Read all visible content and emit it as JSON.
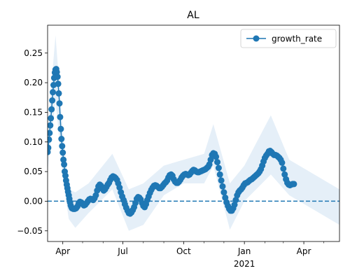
{
  "chart_data": {
    "type": "line",
    "title": "AL",
    "xlabel": "",
    "ylabel": "",
    "x_range": [
      "2020-03-09",
      "2021-05-25"
    ],
    "ylim": [
      -0.068,
      0.297
    ],
    "x_ticks": [
      {
        "date": "2020-04-01",
        "label": "Apr",
        "sublabel": ""
      },
      {
        "date": "2020-07-01",
        "label": "Jul",
        "sublabel": ""
      },
      {
        "date": "2020-10-01",
        "label": "Oct",
        "sublabel": ""
      },
      {
        "date": "2021-01-01",
        "label": "Jan",
        "sublabel": "2021"
      },
      {
        "date": "2021-04-01",
        "label": "Apr",
        "sublabel": ""
      }
    ],
    "x_minor_ticks": [
      "2020-05-01",
      "2020-06-01",
      "2020-08-01",
      "2020-09-01",
      "2020-11-01",
      "2020-12-01",
      "2021-02-01",
      "2021-03-01",
      "2021-05-01"
    ],
    "y_ticks": [
      -0.05,
      0.0,
      0.05,
      0.1,
      0.15,
      0.2,
      0.25
    ],
    "y_tick_labels": [
      "−0.05",
      "0.00",
      "0.05",
      "0.10",
      "0.15",
      "0.20",
      "0.25"
    ],
    "reference_line": {
      "y": 0.0,
      "style": "dashed"
    },
    "legend": {
      "position": "top-right",
      "entries": [
        "growth_rate"
      ]
    },
    "series": [
      {
        "name": "growth_rate",
        "color": "#1f77b4",
        "marker": "circle",
        "band_color": "#c6dbef",
        "points": [
          [
            "2020-03-09",
            0.083
          ],
          [
            "2020-03-10",
            0.09
          ],
          [
            "2020-03-11",
            0.104
          ],
          [
            "2020-03-12",
            0.115
          ],
          [
            "2020-03-13",
            0.128
          ],
          [
            "2020-03-14",
            0.14
          ],
          [
            "2020-03-15",
            0.155
          ],
          [
            "2020-03-16",
            0.17
          ],
          [
            "2020-03-17",
            0.184
          ],
          [
            "2020-03-18",
            0.196
          ],
          [
            "2020-03-19",
            0.208
          ],
          [
            "2020-03-20",
            0.217
          ],
          [
            "2020-03-21",
            0.222
          ],
          [
            "2020-03-22",
            0.223
          ],
          [
            "2020-03-23",
            0.218
          ],
          [
            "2020-03-24",
            0.21
          ],
          [
            "2020-03-25",
            0.198
          ],
          [
            "2020-03-26",
            0.182
          ],
          [
            "2020-03-27",
            0.165
          ],
          [
            "2020-03-28",
            0.142
          ],
          [
            "2020-03-29",
            0.122
          ],
          [
            "2020-03-30",
            0.105
          ],
          [
            "2020-03-31",
            0.093
          ],
          [
            "2020-04-01",
            0.082
          ],
          [
            "2020-04-02",
            0.07
          ],
          [
            "2020-04-03",
            0.062
          ],
          [
            "2020-04-04",
            0.05
          ],
          [
            "2020-04-05",
            0.043
          ],
          [
            "2020-04-06",
            0.035
          ],
          [
            "2020-04-07",
            0.028
          ],
          [
            "2020-04-08",
            0.022
          ],
          [
            "2020-04-09",
            0.016
          ],
          [
            "2020-04-10",
            0.01
          ],
          [
            "2020-04-11",
            0.004
          ],
          [
            "2020-04-12",
            -0.002
          ],
          [
            "2020-04-13",
            -0.007
          ],
          [
            "2020-04-14",
            -0.01
          ],
          [
            "2020-04-15",
            -0.012
          ],
          [
            "2020-04-17",
            -0.013
          ],
          [
            "2020-04-19",
            -0.013
          ],
          [
            "2020-04-21",
            -0.012
          ],
          [
            "2020-04-23",
            -0.009
          ],
          [
            "2020-04-25",
            -0.004
          ],
          [
            "2020-04-27",
            -0.001
          ],
          [
            "2020-04-29",
            -0.002
          ],
          [
            "2020-05-01",
            -0.005
          ],
          [
            "2020-05-03",
            -0.007
          ],
          [
            "2020-05-05",
            -0.006
          ],
          [
            "2020-05-07",
            -0.003
          ],
          [
            "2020-05-09",
            0.0
          ],
          [
            "2020-05-11",
            0.003
          ],
          [
            "2020-05-13",
            0.004
          ],
          [
            "2020-05-15",
            0.003
          ],
          [
            "2020-05-17",
            0.002
          ],
          [
            "2020-05-19",
            0.005
          ],
          [
            "2020-05-21",
            0.01
          ],
          [
            "2020-05-23",
            0.018
          ],
          [
            "2020-05-25",
            0.025
          ],
          [
            "2020-05-27",
            0.028
          ],
          [
            "2020-05-29",
            0.026
          ],
          [
            "2020-05-31",
            0.021
          ],
          [
            "2020-06-02",
            0.018
          ],
          [
            "2020-06-04",
            0.02
          ],
          [
            "2020-06-06",
            0.024
          ],
          [
            "2020-06-08",
            0.028
          ],
          [
            "2020-06-10",
            0.031
          ],
          [
            "2020-06-12",
            0.036
          ],
          [
            "2020-06-14",
            0.04
          ],
          [
            "2020-06-16",
            0.042
          ],
          [
            "2020-06-18",
            0.041
          ],
          [
            "2020-06-20",
            0.039
          ],
          [
            "2020-06-22",
            0.036
          ],
          [
            "2020-06-24",
            0.03
          ],
          [
            "2020-06-26",
            0.023
          ],
          [
            "2020-06-28",
            0.015
          ],
          [
            "2020-06-30",
            0.008
          ],
          [
            "2020-07-02",
            0.002
          ],
          [
            "2020-07-04",
            -0.005
          ],
          [
            "2020-07-06",
            -0.011
          ],
          [
            "2020-07-08",
            -0.016
          ],
          [
            "2020-07-10",
            -0.02
          ],
          [
            "2020-07-12",
            -0.021
          ],
          [
            "2020-07-14",
            -0.019
          ],
          [
            "2020-07-16",
            -0.015
          ],
          [
            "2020-07-18",
            -0.01
          ],
          [
            "2020-07-20",
            -0.003
          ],
          [
            "2020-07-22",
            0.004
          ],
          [
            "2020-07-24",
            0.007
          ],
          [
            "2020-07-26",
            0.006
          ],
          [
            "2020-07-28",
            0.003
          ],
          [
            "2020-07-30",
            -0.003
          ],
          [
            "2020-08-01",
            -0.008
          ],
          [
            "2020-08-03",
            -0.01
          ],
          [
            "2020-08-05",
            -0.005
          ],
          [
            "2020-08-07",
            0.002
          ],
          [
            "2020-08-09",
            0.008
          ],
          [
            "2020-08-11",
            0.014
          ],
          [
            "2020-08-13",
            0.019
          ],
          [
            "2020-08-15",
            0.023
          ],
          [
            "2020-08-17",
            0.026
          ],
          [
            "2020-08-19",
            0.027
          ],
          [
            "2020-08-21",
            0.026
          ],
          [
            "2020-08-23",
            0.024
          ],
          [
            "2020-08-25",
            0.022
          ],
          [
            "2020-08-27",
            0.022
          ],
          [
            "2020-08-29",
            0.024
          ],
          [
            "2020-08-31",
            0.027
          ],
          [
            "2020-09-02",
            0.03
          ],
          [
            "2020-09-04",
            0.032
          ],
          [
            "2020-09-06",
            0.035
          ],
          [
            "2020-09-08",
            0.04
          ],
          [
            "2020-09-10",
            0.044
          ],
          [
            "2020-09-12",
            0.045
          ],
          [
            "2020-09-14",
            0.043
          ],
          [
            "2020-09-16",
            0.037
          ],
          [
            "2020-09-18",
            0.033
          ],
          [
            "2020-09-20",
            0.031
          ],
          [
            "2020-09-22",
            0.031
          ],
          [
            "2020-09-24",
            0.033
          ],
          [
            "2020-09-26",
            0.036
          ],
          [
            "2020-09-28",
            0.04
          ],
          [
            "2020-09-30",
            0.043
          ],
          [
            "2020-10-02",
            0.045
          ],
          [
            "2020-10-04",
            0.046
          ],
          [
            "2020-10-06",
            0.045
          ],
          [
            "2020-10-08",
            0.044
          ],
          [
            "2020-10-10",
            0.045
          ],
          [
            "2020-10-12",
            0.048
          ],
          [
            "2020-10-14",
            0.051
          ],
          [
            "2020-10-16",
            0.053
          ],
          [
            "2020-10-18",
            0.052
          ],
          [
            "2020-10-20",
            0.05
          ],
          [
            "2020-10-22",
            0.049
          ],
          [
            "2020-10-24",
            0.049
          ],
          [
            "2020-10-26",
            0.05
          ],
          [
            "2020-10-28",
            0.051
          ],
          [
            "2020-10-30",
            0.052
          ],
          [
            "2020-11-01",
            0.053
          ],
          [
            "2020-11-03",
            0.054
          ],
          [
            "2020-11-05",
            0.056
          ],
          [
            "2020-11-07",
            0.058
          ],
          [
            "2020-11-09",
            0.062
          ],
          [
            "2020-11-11",
            0.07
          ],
          [
            "2020-11-13",
            0.078
          ],
          [
            "2020-11-15",
            0.081
          ],
          [
            "2020-11-17",
            0.08
          ],
          [
            "2020-11-19",
            0.075
          ],
          [
            "2020-11-21",
            0.066
          ],
          [
            "2020-11-23",
            0.056
          ],
          [
            "2020-11-25",
            0.045
          ],
          [
            "2020-11-27",
            0.035
          ],
          [
            "2020-11-29",
            0.025
          ],
          [
            "2020-12-01",
            0.015
          ],
          [
            "2020-12-03",
            0.006
          ],
          [
            "2020-12-05",
            -0.002
          ],
          [
            "2020-12-07",
            -0.008
          ],
          [
            "2020-12-09",
            -0.013
          ],
          [
            "2020-12-11",
            -0.016
          ],
          [
            "2020-12-13",
            -0.016
          ],
          [
            "2020-12-15",
            -0.012
          ],
          [
            "2020-12-17",
            -0.006
          ],
          [
            "2020-12-19",
            0.002
          ],
          [
            "2020-12-21",
            0.01
          ],
          [
            "2020-12-23",
            0.015
          ],
          [
            "2020-12-25",
            0.018
          ],
          [
            "2020-12-27",
            0.02
          ],
          [
            "2020-12-29",
            0.023
          ],
          [
            "2020-12-31",
            0.027
          ],
          [
            "2021-01-02",
            0.03
          ],
          [
            "2021-01-04",
            0.031
          ],
          [
            "2021-01-06",
            0.032
          ],
          [
            "2021-01-08",
            0.034
          ],
          [
            "2021-01-10",
            0.036
          ],
          [
            "2021-01-12",
            0.037
          ],
          [
            "2021-01-14",
            0.039
          ],
          [
            "2021-01-16",
            0.041
          ],
          [
            "2021-01-18",
            0.043
          ],
          [
            "2021-01-20",
            0.045
          ],
          [
            "2021-01-22",
            0.047
          ],
          [
            "2021-01-24",
            0.05
          ],
          [
            "2021-01-26",
            0.054
          ],
          [
            "2021-01-28",
            0.06
          ],
          [
            "2021-01-30",
            0.067
          ],
          [
            "2021-02-01",
            0.073
          ],
          [
            "2021-02-03",
            0.077
          ],
          [
            "2021-02-05",
            0.08
          ],
          [
            "2021-02-07",
            0.084
          ],
          [
            "2021-02-09",
            0.085
          ],
          [
            "2021-02-11",
            0.083
          ],
          [
            "2021-02-13",
            0.08
          ],
          [
            "2021-02-15",
            0.078
          ],
          [
            "2021-02-17",
            0.078
          ],
          [
            "2021-02-19",
            0.077
          ],
          [
            "2021-02-21",
            0.075
          ],
          [
            "2021-02-23",
            0.073
          ],
          [
            "2021-02-25",
            0.07
          ],
          [
            "2021-02-27",
            0.065
          ],
          [
            "2021-03-01",
            0.055
          ],
          [
            "2021-03-03",
            0.045
          ],
          [
            "2021-03-05",
            0.037
          ],
          [
            "2021-03-07",
            0.031
          ],
          [
            "2021-03-09",
            0.028
          ],
          [
            "2021-03-11",
            0.027
          ],
          [
            "2021-03-13",
            0.028
          ],
          [
            "2021-03-15",
            0.029
          ],
          [
            "2021-03-17",
            0.029
          ]
        ],
        "band_lower": [
          [
            "2020-03-09",
            0.05
          ],
          [
            "2020-03-21",
            0.17
          ],
          [
            "2020-04-01",
            0.04
          ],
          [
            "2020-04-10",
            -0.03
          ],
          [
            "2020-04-20",
            -0.045
          ],
          [
            "2020-05-10",
            -0.02
          ],
          [
            "2020-06-15",
            0.02
          ],
          [
            "2020-07-10",
            -0.05
          ],
          [
            "2020-08-01",
            -0.04
          ],
          [
            "2020-09-01",
            0.01
          ],
          [
            "2020-10-01",
            0.03
          ],
          [
            "2020-11-01",
            0.03
          ],
          [
            "2020-11-15",
            0.06
          ],
          [
            "2020-12-10",
            -0.048
          ],
          [
            "2021-01-01",
            0.0
          ],
          [
            "2021-02-10",
            0.045
          ],
          [
            "2021-03-10",
            0.01
          ],
          [
            "2021-05-25",
            -0.04
          ]
        ],
        "band_upper": [
          [
            "2020-03-09",
            0.12
          ],
          [
            "2020-03-21",
            0.28
          ],
          [
            "2020-04-01",
            0.12
          ],
          [
            "2020-04-10",
            0.02
          ],
          [
            "2020-04-20",
            0.015
          ],
          [
            "2020-05-10",
            0.03
          ],
          [
            "2020-06-15",
            0.08
          ],
          [
            "2020-07-10",
            0.02
          ],
          [
            "2020-08-01",
            0.03
          ],
          [
            "2020-09-01",
            0.06
          ],
          [
            "2020-10-01",
            0.07
          ],
          [
            "2020-11-01",
            0.08
          ],
          [
            "2020-11-15",
            0.13
          ],
          [
            "2020-12-10",
            0.03
          ],
          [
            "2021-01-01",
            0.06
          ],
          [
            "2021-02-10",
            0.145
          ],
          [
            "2021-03-10",
            0.07
          ],
          [
            "2021-05-25",
            0.02
          ]
        ]
      }
    ]
  }
}
